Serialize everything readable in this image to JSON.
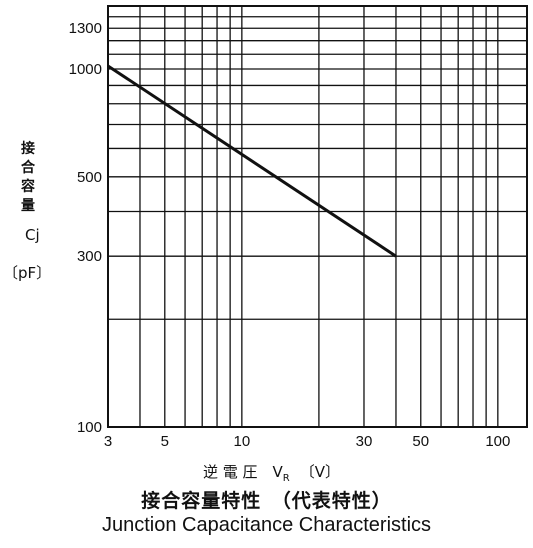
{
  "chart_data": {
    "type": "line",
    "title": "接合容量特性　（代表特性）",
    "subtitle": "Junction Capacitance Characteristics",
    "xlabel": "逆 電 圧　V",
    "xlabel_subscript": "R",
    "xlabel_unit": "〔V〕",
    "ylabel": "接合容量",
    "ylabel_symbol": "Cj",
    "ylabel_unit": "〔pF〕",
    "x_scale": "log",
    "y_scale": "log",
    "xlim": [
      3,
      130
    ],
    "ylim": [
      100,
      1500
    ],
    "x_ticks": [
      3,
      5,
      10,
      30,
      50,
      100
    ],
    "x_tick_labels": [
      "3",
      "5",
      "10",
      "30",
      "50",
      "100"
    ],
    "y_ticks": [
      100,
      300,
      500,
      1000,
      1300
    ],
    "y_tick_labels": [
      "100",
      "300",
      "500",
      "1000",
      "1300"
    ],
    "grid": true,
    "series": [
      {
        "x": [
          3,
          40
        ],
        "y": [
          1020,
          300
        ]
      }
    ]
  }
}
